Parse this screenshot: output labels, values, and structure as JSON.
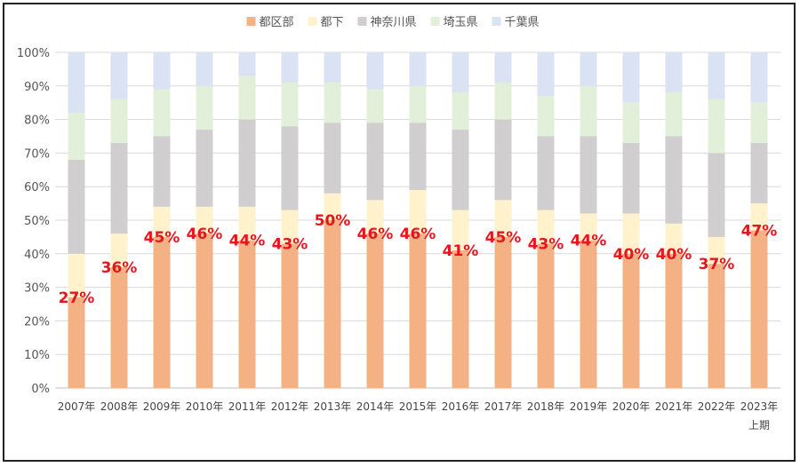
{
  "chart_data": {
    "type": "bar",
    "stacked": true,
    "percent": true,
    "categories": [
      "2007年",
      "2008年",
      "2009年",
      "2010年",
      "2011年",
      "2012年",
      "2013年",
      "2014年",
      "2015年",
      "2016年",
      "2017年",
      "2018年",
      "2019年",
      "2020年",
      "2021年",
      "2022年",
      "2023年"
    ],
    "category_note": {
      "index": 16,
      "text": "上期"
    },
    "ylim": [
      0,
      100
    ],
    "yticks": [
      "0%",
      "10%",
      "20%",
      "30%",
      "40%",
      "50%",
      "60%",
      "70%",
      "80%",
      "90%",
      "100%"
    ],
    "grid": true,
    "legend_position": "top",
    "series": [
      {
        "name": "都区部",
        "color": "#f4b183",
        "values": [
          27,
          36,
          45,
          46,
          44,
          43,
          50,
          46,
          46,
          41,
          45,
          43,
          44,
          40,
          40,
          37,
          47
        ]
      },
      {
        "name": "都下",
        "color": "#fff2cc",
        "values": [
          13,
          10,
          9,
          8,
          10,
          10,
          8,
          10,
          13,
          12,
          11,
          10,
          8,
          12,
          9,
          8,
          8
        ]
      },
      {
        "name": "神奈川県",
        "color": "#d0cece",
        "values": [
          28,
          27,
          21,
          23,
          26,
          25,
          21,
          23,
          20,
          24,
          24,
          22,
          23,
          21,
          26,
          25,
          18
        ]
      },
      {
        "name": "埼玉県",
        "color": "#e2efd9",
        "values": [
          14,
          13,
          14,
          13,
          13,
          13,
          12,
          10,
          11,
          11,
          11,
          12,
          15,
          12,
          13,
          16,
          12
        ]
      },
      {
        "name": "千葉県",
        "color": "#dae3f3",
        "values": [
          18,
          14,
          11,
          10,
          7,
          9,
          9,
          11,
          10,
          12,
          9,
          13,
          10,
          15,
          12,
          14,
          15
        ]
      }
    ],
    "data_labels": [
      "27%",
      "36%",
      "45%",
      "46%",
      "44%",
      "43%",
      "50%",
      "46%",
      "46%",
      "41%",
      "45%",
      "43%",
      "44%",
      "40%",
      "40%",
      "37%",
      "47%"
    ]
  }
}
